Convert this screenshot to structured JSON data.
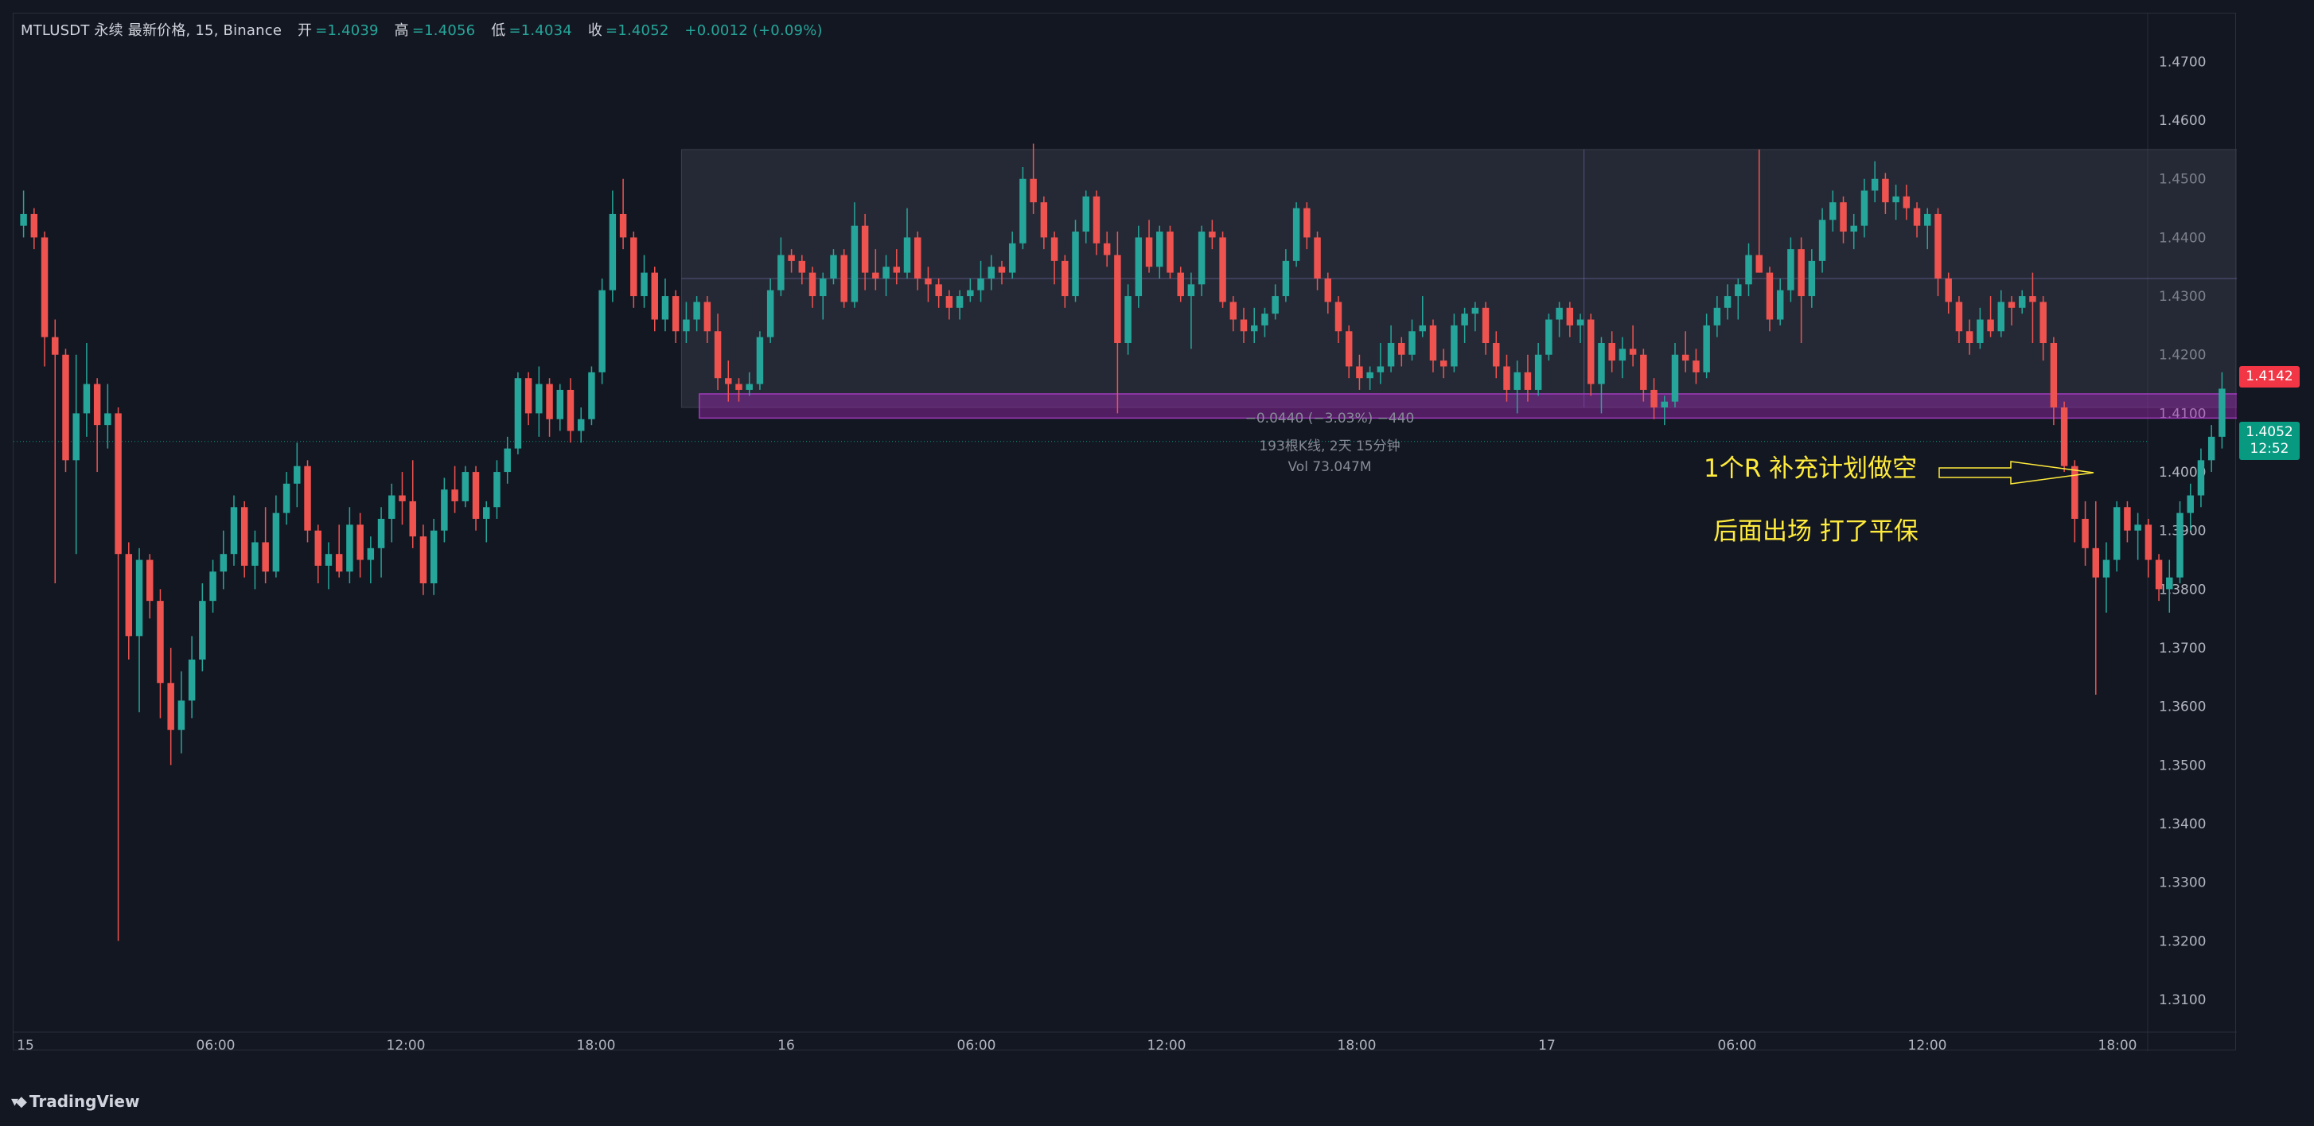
{
  "header": {
    "symbol": "MTLUSDT 永续 最新价格, 15, Binance",
    "open_label": "开",
    "open_value": "=1.4039",
    "high_label": "高",
    "high_value": "=1.4056",
    "low_label": "低",
    "low_value": "=1.4034",
    "close_label": "收",
    "close_value": "=1.4052",
    "change": "+0.0012 (+0.09%)"
  },
  "annotations": {
    "line1": "1个R 补充计划做空",
    "line2": "后面出场 打了平保"
  },
  "measure": {
    "line1": "−0.0440 (−3.03%) −440",
    "line2": "193根K线, 2天 15分钟",
    "line3": "Vol 73.047M"
  },
  "price_tags": {
    "level": "1.4142",
    "current": "1.4052",
    "countdown": "12:52"
  },
  "brand": {
    "name": "TradingView"
  },
  "colors": {
    "up": "#26a69a",
    "down": "#ef5350",
    "range_fill": "#2a2e39",
    "support_zone": "#9c27b0",
    "annotation": "#ffeb3b"
  },
  "chart_data": {
    "type": "candlestick",
    "title": "MTLUSDT 永续 最新价格, 15, Binance",
    "interval": "15",
    "ylim": [
      1.305,
      1.475
    ],
    "y_ticks": [
      "1.4700",
      "1.4600",
      "1.4500",
      "1.4400",
      "1.4300",
      "1.4200",
      "1.4100",
      "1.4000",
      "1.3900",
      "1.3800",
      "1.3700",
      "1.3600",
      "1.3500",
      "1.3400",
      "1.3300",
      "1.3200",
      "1.3100"
    ],
    "x_ticks": [
      "15",
      "06:00",
      "12:00",
      "18:00",
      "16",
      "06:00",
      "12:00",
      "18:00",
      "17",
      "06:00",
      "12:00",
      "18:00"
    ],
    "candles": [
      [
        1.442,
        1.448,
        1.44,
        1.444
      ],
      [
        1.444,
        1.445,
        1.438,
        1.44
      ],
      [
        1.44,
        1.441,
        1.418,
        1.423
      ],
      [
        1.423,
        1.426,
        1.381,
        1.42
      ],
      [
        1.42,
        1.421,
        1.4,
        1.402
      ],
      [
        1.402,
        1.42,
        1.386,
        1.41
      ],
      [
        1.41,
        1.422,
        1.406,
        1.415
      ],
      [
        1.415,
        1.416,
        1.4,
        1.408
      ],
      [
        1.408,
        1.415,
        1.404,
        1.41
      ],
      [
        1.41,
        1.411,
        1.32,
        1.386
      ],
      [
        1.386,
        1.388,
        1.368,
        1.372
      ],
      [
        1.372,
        1.387,
        1.359,
        1.385
      ],
      [
        1.385,
        1.386,
        1.375,
        1.378
      ],
      [
        1.378,
        1.38,
        1.358,
        1.364
      ],
      [
        1.364,
        1.37,
        1.35,
        1.356
      ],
      [
        1.356,
        1.366,
        1.352,
        1.361
      ],
      [
        1.361,
        1.372,
        1.358,
        1.368
      ],
      [
        1.368,
        1.381,
        1.366,
        1.378
      ],
      [
        1.378,
        1.385,
        1.376,
        1.383
      ],
      [
        1.383,
        1.39,
        1.38,
        1.386
      ],
      [
        1.386,
        1.396,
        1.384,
        1.394
      ],
      [
        1.394,
        1.395,
        1.382,
        1.384
      ],
      [
        1.384,
        1.39,
        1.38,
        1.388
      ],
      [
        1.388,
        1.394,
        1.381,
        1.383
      ],
      [
        1.383,
        1.396,
        1.382,
        1.393
      ],
      [
        1.393,
        1.4,
        1.391,
        1.398
      ],
      [
        1.398,
        1.405,
        1.394,
        1.401
      ],
      [
        1.401,
        1.402,
        1.388,
        1.39
      ],
      [
        1.39,
        1.391,
        1.381,
        1.384
      ],
      [
        1.384,
        1.388,
        1.38,
        1.386
      ],
      [
        1.386,
        1.391,
        1.382,
        1.383
      ],
      [
        1.383,
        1.394,
        1.381,
        1.391
      ],
      [
        1.391,
        1.393,
        1.382,
        1.385
      ],
      [
        1.385,
        1.389,
        1.381,
        1.387
      ],
      [
        1.387,
        1.394,
        1.382,
        1.392
      ],
      [
        1.392,
        1.398,
        1.388,
        1.396
      ],
      [
        1.396,
        1.4,
        1.391,
        1.395
      ],
      [
        1.395,
        1.402,
        1.387,
        1.389
      ],
      [
        1.389,
        1.391,
        1.379,
        1.381
      ],
      [
        1.381,
        1.392,
        1.379,
        1.39
      ],
      [
        1.39,
        1.399,
        1.388,
        1.397
      ],
      [
        1.397,
        1.401,
        1.393,
        1.395
      ],
      [
        1.395,
        1.401,
        1.394,
        1.4
      ],
      [
        1.4,
        1.401,
        1.39,
        1.392
      ],
      [
        1.392,
        1.395,
        1.388,
        1.394
      ],
      [
        1.394,
        1.402,
        1.392,
        1.4
      ],
      [
        1.4,
        1.406,
        1.398,
        1.404
      ],
      [
        1.404,
        1.417,
        1.403,
        1.416
      ],
      [
        1.416,
        1.417,
        1.408,
        1.41
      ],
      [
        1.41,
        1.418,
        1.406,
        1.415
      ],
      [
        1.415,
        1.416,
        1.406,
        1.409
      ],
      [
        1.409,
        1.415,
        1.407,
        1.414
      ],
      [
        1.414,
        1.416,
        1.405,
        1.407
      ],
      [
        1.407,
        1.411,
        1.405,
        1.409
      ],
      [
        1.409,
        1.418,
        1.408,
        1.417
      ],
      [
        1.417,
        1.433,
        1.415,
        1.431
      ],
      [
        1.431,
        1.448,
        1.429,
        1.444
      ],
      [
        1.444,
        1.45,
        1.438,
        1.44
      ],
      [
        1.44,
        1.441,
        1.428,
        1.43
      ],
      [
        1.43,
        1.437,
        1.428,
        1.434
      ],
      [
        1.434,
        1.435,
        1.424,
        1.426
      ],
      [
        1.426,
        1.433,
        1.424,
        1.43
      ],
      [
        1.43,
        1.431,
        1.422,
        1.424
      ],
      [
        1.424,
        1.429,
        1.422,
        1.426
      ],
      [
        1.426,
        1.43,
        1.424,
        1.429
      ],
      [
        1.429,
        1.43,
        1.422,
        1.424
      ],
      [
        1.424,
        1.427,
        1.414,
        1.416
      ],
      [
        1.416,
        1.419,
        1.412,
        1.415
      ],
      [
        1.415,
        1.416,
        1.412,
        1.414
      ],
      [
        1.414,
        1.417,
        1.413,
        1.415
      ],
      [
        1.415,
        1.424,
        1.414,
        1.423
      ],
      [
        1.423,
        1.433,
        1.422,
        1.431
      ],
      [
        1.431,
        1.44,
        1.43,
        1.437
      ],
      [
        1.437,
        1.438,
        1.434,
        1.436
      ],
      [
        1.436,
        1.437,
        1.432,
        1.434
      ],
      [
        1.434,
        1.435,
        1.428,
        1.43
      ],
      [
        1.43,
        1.434,
        1.426,
        1.433
      ],
      [
        1.433,
        1.438,
        1.432,
        1.437
      ],
      [
        1.437,
        1.438,
        1.428,
        1.429
      ],
      [
        1.429,
        1.446,
        1.428,
        1.442
      ],
      [
        1.442,
        1.444,
        1.431,
        1.434
      ],
      [
        1.434,
        1.438,
        1.431,
        1.433
      ],
      [
        1.433,
        1.437,
        1.43,
        1.435
      ],
      [
        1.435,
        1.438,
        1.432,
        1.434
      ],
      [
        1.434,
        1.445,
        1.433,
        1.44
      ],
      [
        1.44,
        1.441,
        1.431,
        1.433
      ],
      [
        1.433,
        1.435,
        1.429,
        1.432
      ],
      [
        1.432,
        1.433,
        1.428,
        1.43
      ],
      [
        1.43,
        1.431,
        1.426,
        1.428
      ],
      [
        1.428,
        1.431,
        1.426,
        1.43
      ],
      [
        1.43,
        1.433,
        1.429,
        1.431
      ],
      [
        1.431,
        1.436,
        1.429,
        1.433
      ],
      [
        1.433,
        1.437,
        1.431,
        1.435
      ],
      [
        1.435,
        1.436,
        1.432,
        1.434
      ],
      [
        1.434,
        1.441,
        1.433,
        1.439
      ],
      [
        1.439,
        1.452,
        1.438,
        1.45
      ],
      [
        1.45,
        1.456,
        1.444,
        1.446
      ],
      [
        1.446,
        1.447,
        1.438,
        1.44
      ],
      [
        1.44,
        1.441,
        1.432,
        1.436
      ],
      [
        1.436,
        1.437,
        1.428,
        1.43
      ],
      [
        1.43,
        1.443,
        1.429,
        1.441
      ],
      [
        1.441,
        1.448,
        1.439,
        1.447
      ],
      [
        1.447,
        1.448,
        1.437,
        1.439
      ],
      [
        1.439,
        1.441,
        1.435,
        1.437
      ],
      [
        1.437,
        1.441,
        1.41,
        1.422
      ],
      [
        1.422,
        1.432,
        1.42,
        1.43
      ],
      [
        1.43,
        1.442,
        1.428,
        1.44
      ],
      [
        1.44,
        1.443,
        1.434,
        1.435
      ],
      [
        1.435,
        1.442,
        1.433,
        1.441
      ],
      [
        1.441,
        1.442,
        1.433,
        1.434
      ],
      [
        1.434,
        1.435,
        1.429,
        1.43
      ],
      [
        1.43,
        1.434,
        1.421,
        1.432
      ],
      [
        1.432,
        1.442,
        1.43,
        1.441
      ],
      [
        1.441,
        1.443,
        1.438,
        1.44
      ],
      [
        1.44,
        1.441,
        1.428,
        1.429
      ],
      [
        1.429,
        1.43,
        1.424,
        1.426
      ],
      [
        1.426,
        1.428,
        1.422,
        1.424
      ],
      [
        1.424,
        1.428,
        1.422,
        1.425
      ],
      [
        1.425,
        1.428,
        1.423,
        1.427
      ],
      [
        1.427,
        1.432,
        1.426,
        1.43
      ],
      [
        1.43,
        1.438,
        1.429,
        1.436
      ],
      [
        1.436,
        1.446,
        1.435,
        1.445
      ],
      [
        1.445,
        1.446,
        1.438,
        1.44
      ],
      [
        1.44,
        1.441,
        1.431,
        1.433
      ],
      [
        1.433,
        1.434,
        1.427,
        1.429
      ],
      [
        1.429,
        1.43,
        1.422,
        1.424
      ],
      [
        1.424,
        1.425,
        1.416,
        1.418
      ],
      [
        1.418,
        1.42,
        1.414,
        1.416
      ],
      [
        1.416,
        1.418,
        1.414,
        1.417
      ],
      [
        1.417,
        1.422,
        1.415,
        1.418
      ],
      [
        1.418,
        1.425,
        1.417,
        1.422
      ],
      [
        1.422,
        1.423,
        1.418,
        1.42
      ],
      [
        1.42,
        1.426,
        1.419,
        1.424
      ],
      [
        1.424,
        1.43,
        1.423,
        1.425
      ],
      [
        1.425,
        1.426,
        1.417,
        1.419
      ],
      [
        1.419,
        1.421,
        1.416,
        1.418
      ],
      [
        1.418,
        1.427,
        1.417,
        1.425
      ],
      [
        1.425,
        1.428,
        1.422,
        1.427
      ],
      [
        1.427,
        1.429,
        1.424,
        1.428
      ],
      [
        1.428,
        1.429,
        1.42,
        1.422
      ],
      [
        1.422,
        1.424,
        1.416,
        1.418
      ],
      [
        1.418,
        1.42,
        1.412,
        1.414
      ],
      [
        1.414,
        1.419,
        1.41,
        1.417
      ],
      [
        1.417,
        1.42,
        1.412,
        1.414
      ],
      [
        1.414,
        1.422,
        1.413,
        1.42
      ],
      [
        1.42,
        1.427,
        1.419,
        1.426
      ],
      [
        1.426,
        1.429,
        1.423,
        1.428
      ],
      [
        1.428,
        1.429,
        1.423,
        1.425
      ],
      [
        1.425,
        1.427,
        1.422,
        1.426
      ],
      [
        1.426,
        1.427,
        1.413,
        1.415
      ],
      [
        1.415,
        1.423,
        1.41,
        1.422
      ],
      [
        1.422,
        1.424,
        1.417,
        1.419
      ],
      [
        1.419,
        1.423,
        1.416,
        1.421
      ],
      [
        1.421,
        1.425,
        1.418,
        1.42
      ],
      [
        1.42,
        1.421,
        1.412,
        1.414
      ],
      [
        1.414,
        1.416,
        1.409,
        1.411
      ],
      [
        1.411,
        1.413,
        1.408,
        1.412
      ],
      [
        1.412,
        1.422,
        1.411,
        1.42
      ],
      [
        1.42,
        1.424,
        1.417,
        1.419
      ],
      [
        1.419,
        1.421,
        1.415,
        1.417
      ],
      [
        1.417,
        1.427,
        1.416,
        1.425
      ],
      [
        1.425,
        1.43,
        1.423,
        1.428
      ],
      [
        1.428,
        1.432,
        1.426,
        1.43
      ],
      [
        1.43,
        1.433,
        1.426,
        1.432
      ],
      [
        1.432,
        1.439,
        1.43,
        1.437
      ],
      [
        1.437,
        1.455,
        1.434,
        1.434
      ],
      [
        1.434,
        1.435,
        1.424,
        1.426
      ],
      [
        1.426,
        1.433,
        1.425,
        1.431
      ],
      [
        1.431,
        1.44,
        1.429,
        1.438
      ],
      [
        1.438,
        1.44,
        1.422,
        1.43
      ],
      [
        1.43,
        1.438,
        1.428,
        1.436
      ],
      [
        1.436,
        1.445,
        1.434,
        1.443
      ],
      [
        1.443,
        1.448,
        1.441,
        1.446
      ],
      [
        1.446,
        1.447,
        1.439,
        1.441
      ],
      [
        1.441,
        1.444,
        1.438,
        1.442
      ],
      [
        1.442,
        1.45,
        1.44,
        1.448
      ],
      [
        1.448,
        1.453,
        1.446,
        1.45
      ],
      [
        1.45,
        1.451,
        1.444,
        1.446
      ],
      [
        1.446,
        1.449,
        1.443,
        1.447
      ],
      [
        1.447,
        1.449,
        1.443,
        1.445
      ],
      [
        1.445,
        1.446,
        1.44,
        1.442
      ],
      [
        1.442,
        1.445,
        1.438,
        1.444
      ],
      [
        1.444,
        1.445,
        1.43,
        1.433
      ],
      [
        1.433,
        1.434,
        1.427,
        1.429
      ],
      [
        1.429,
        1.43,
        1.422,
        1.424
      ],
      [
        1.424,
        1.426,
        1.42,
        1.422
      ],
      [
        1.422,
        1.428,
        1.421,
        1.426
      ],
      [
        1.426,
        1.43,
        1.423,
        1.424
      ],
      [
        1.424,
        1.431,
        1.423,
        1.429
      ],
      [
        1.429,
        1.43,
        1.425,
        1.428
      ],
      [
        1.428,
        1.431,
        1.427,
        1.43
      ],
      [
        1.43,
        1.434,
        1.422,
        1.429
      ],
      [
        1.429,
        1.43,
        1.419,
        1.422
      ],
      [
        1.422,
        1.423,
        1.408,
        1.411
      ],
      [
        1.411,
        1.412,
        1.4,
        1.401
      ],
      [
        1.401,
        1.402,
        1.388,
        1.392
      ],
      [
        1.392,
        1.395,
        1.384,
        1.387
      ],
      [
        1.387,
        1.395,
        1.362,
        1.382
      ],
      [
        1.382,
        1.388,
        1.376,
        1.385
      ],
      [
        1.385,
        1.395,
        1.383,
        1.394
      ],
      [
        1.394,
        1.395,
        1.388,
        1.39
      ],
      [
        1.39,
        1.393,
        1.385,
        1.391
      ],
      [
        1.391,
        1.392,
        1.382,
        1.385
      ],
      [
        1.385,
        1.386,
        1.378,
        1.38
      ],
      [
        1.38,
        1.385,
        1.376,
        1.382
      ],
      [
        1.382,
        1.395,
        1.381,
        1.393
      ],
      [
        1.393,
        1.398,
        1.39,
        1.396
      ],
      [
        1.396,
        1.404,
        1.394,
        1.402
      ],
      [
        1.402,
        1.408,
        1.4,
        1.406
      ],
      [
        1.406,
        1.417,
        1.404,
        1.4142
      ]
    ],
    "drawings": {
      "range_box": {
        "price_top": 1.455,
        "price_bottom": 1.411,
        "label": "−0.0440 (−3.03%) −440",
        "bars": "193根K线, 2天 15分钟",
        "volume": "Vol 73.047M"
      },
      "support_zone": {
        "price_top": 1.4125,
        "price_bottom": 1.41
      },
      "last_price_line": 1.4052,
      "level_tag": 1.4142
    }
  }
}
